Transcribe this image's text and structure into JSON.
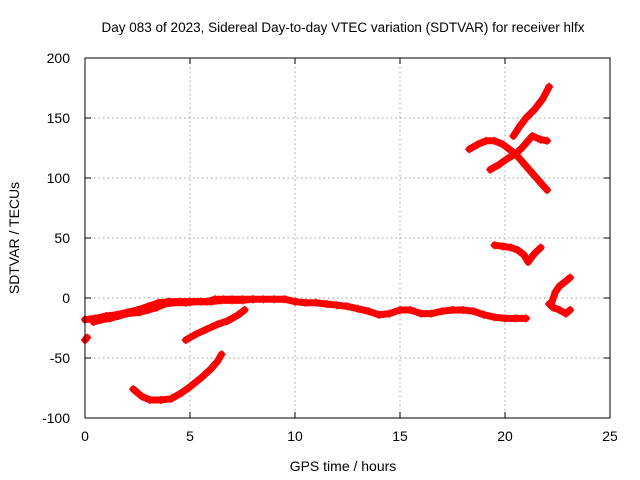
{
  "chart_data": {
    "type": "scatter",
    "title": "Day 083 of 2023, Sidereal Day-to-day VTEC variation (SDTVAR) for receiver hlfx",
    "xlabel": "GPS time / hours",
    "ylabel": "SDTVAR / TECUs",
    "xlim": [
      0,
      25
    ],
    "ylim": [
      -100,
      200
    ],
    "xticks": [
      0,
      5,
      10,
      15,
      20,
      25
    ],
    "yticks": [
      -100,
      -50,
      0,
      50,
      100,
      150,
      200
    ],
    "xtick_labels": [
      "0",
      "5",
      "10",
      "15",
      "20",
      "25"
    ],
    "ytick_labels": [
      "-100",
      "-50",
      "0",
      "50",
      "100",
      "150",
      "200"
    ],
    "grid": true,
    "marker_color": "#ff0000",
    "series": [
      {
        "points": [
          [
            0.0,
            -18
          ],
          [
            0.5,
            -17
          ],
          [
            1.0,
            -15
          ],
          [
            1.5,
            -14
          ],
          [
            2.0,
            -12
          ],
          [
            2.5,
            -10
          ],
          [
            3.0,
            -7
          ],
          [
            3.5,
            -4
          ],
          [
            4.0,
            -3
          ],
          [
            4.5,
            -3
          ],
          [
            5.0,
            -3
          ],
          [
            5.5,
            -3
          ],
          [
            6.0,
            -3
          ],
          [
            6.5,
            -2
          ],
          [
            7.0,
            -2
          ],
          [
            7.5,
            -2
          ],
          [
            8.0,
            -1
          ],
          [
            8.5,
            -1
          ],
          [
            9.0,
            -1
          ],
          [
            9.5,
            -1
          ],
          [
            10.0,
            -3
          ],
          [
            10.5,
            -4
          ],
          [
            11.0,
            -4
          ],
          [
            11.5,
            -5
          ],
          [
            12.0,
            -6
          ],
          [
            12.5,
            -7
          ],
          [
            13.0,
            -9
          ],
          [
            13.5,
            -11
          ],
          [
            14.0,
            -14
          ],
          [
            14.5,
            -13
          ],
          [
            15.0,
            -10
          ],
          [
            15.5,
            -10
          ],
          [
            16.0,
            -13
          ],
          [
            16.5,
            -13
          ],
          [
            17.0,
            -11
          ],
          [
            17.5,
            -10
          ],
          [
            18.0,
            -10
          ],
          [
            18.5,
            -11
          ],
          [
            19.0,
            -14
          ],
          [
            19.5,
            -16
          ],
          [
            20.0,
            -17
          ],
          [
            20.5,
            -17
          ],
          [
            21.0,
            -17
          ]
        ]
      },
      {
        "points": [
          [
            0.4,
            -20
          ],
          [
            0.8,
            -18
          ],
          [
            1.2,
            -17
          ],
          [
            1.6,
            -15
          ],
          [
            2.0,
            -13
          ],
          [
            2.6,
            -12
          ],
          [
            3.0,
            -10
          ],
          [
            3.4,
            -8
          ],
          [
            3.8,
            -5
          ],
          [
            4.2,
            -4
          ],
          [
            4.8,
            -4
          ],
          [
            5.2,
            -3
          ],
          [
            5.8,
            -3
          ],
          [
            6.2,
            -1
          ],
          [
            6.6,
            -1
          ],
          [
            7.0,
            -1
          ],
          [
            7.5,
            -1
          ],
          [
            8.0,
            -1
          ]
        ]
      },
      {
        "points": [
          [
            4.8,
            -35
          ],
          [
            5.3,
            -30
          ],
          [
            5.8,
            -26
          ],
          [
            6.3,
            -22
          ],
          [
            6.8,
            -19
          ],
          [
            7.3,
            -14
          ],
          [
            7.6,
            -10
          ]
        ]
      },
      {
        "points": [
          [
            2.3,
            -76
          ],
          [
            2.7,
            -82
          ],
          [
            3.1,
            -85
          ],
          [
            3.6,
            -85
          ],
          [
            4.1,
            -84
          ],
          [
            4.6,
            -79
          ],
          [
            5.0,
            -74
          ],
          [
            5.5,
            -67
          ],
          [
            6.0,
            -59
          ],
          [
            6.3,
            -53
          ],
          [
            6.5,
            -47
          ]
        ]
      },
      {
        "points": [
          [
            0.0,
            -35
          ],
          [
            0.1,
            -33
          ]
        ]
      },
      {
        "points": [
          [
            18.3,
            124
          ],
          [
            18.7,
            128
          ],
          [
            19.1,
            131
          ],
          [
            19.5,
            131
          ],
          [
            19.9,
            128
          ],
          [
            20.2,
            124
          ],
          [
            20.5,
            120
          ],
          [
            20.8,
            114
          ],
          [
            21.2,
            106
          ],
          [
            21.6,
            98
          ],
          [
            22.0,
            90
          ]
        ]
      },
      {
        "points": [
          [
            19.3,
            107
          ],
          [
            19.7,
            111
          ],
          [
            20.1,
            116
          ],
          [
            20.5,
            120
          ],
          [
            20.8,
            125
          ],
          [
            21.1,
            131
          ],
          [
            21.3,
            135
          ],
          [
            21.7,
            132
          ],
          [
            22.0,
            131
          ]
        ]
      },
      {
        "points": [
          [
            20.4,
            135
          ],
          [
            20.7,
            143
          ],
          [
            21.0,
            150
          ],
          [
            21.4,
            157
          ],
          [
            21.8,
            166
          ],
          [
            22.1,
            176
          ]
        ]
      },
      {
        "points": [
          [
            19.5,
            44
          ],
          [
            19.9,
            43
          ],
          [
            20.3,
            42
          ],
          [
            20.6,
            40
          ],
          [
            20.9,
            36
          ],
          [
            21.1,
            30
          ],
          [
            21.4,
            37
          ],
          [
            21.7,
            42
          ]
        ]
      },
      {
        "points": [
          [
            22.2,
            -5
          ],
          [
            22.4,
            5
          ],
          [
            22.6,
            10
          ],
          [
            22.9,
            14
          ],
          [
            23.1,
            17
          ]
        ]
      },
      {
        "points": [
          [
            22.1,
            -5
          ],
          [
            22.3,
            -8
          ],
          [
            22.6,
            -10
          ],
          [
            22.9,
            -13
          ],
          [
            23.1,
            -10
          ]
        ]
      }
    ]
  }
}
